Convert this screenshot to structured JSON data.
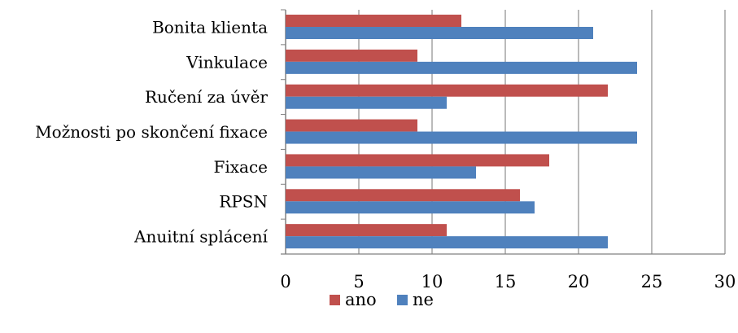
{
  "chart_data": {
    "type": "bar",
    "orientation": "horizontal",
    "categories": [
      "Bonita klienta",
      "Vinkulace",
      "Ručení za úvěr",
      "Možnosti po skončení fixace",
      "Fixace",
      "RPSN",
      "Anuitní splácení"
    ],
    "series": [
      {
        "name": "ano",
        "color": "#c0504d",
        "values": [
          12,
          9,
          22,
          9,
          18,
          16,
          11
        ]
      },
      {
        "name": "ne",
        "color": "#4f81bd",
        "values": [
          21,
          24,
          11,
          24,
          13,
          17,
          22
        ]
      }
    ],
    "xlim": [
      0,
      30
    ],
    "xticks": [
      0,
      5,
      10,
      15,
      20,
      25,
      30
    ],
    "grid": "vertical",
    "legend": "bottom",
    "title": "",
    "xlabel": "",
    "ylabel": ""
  }
}
